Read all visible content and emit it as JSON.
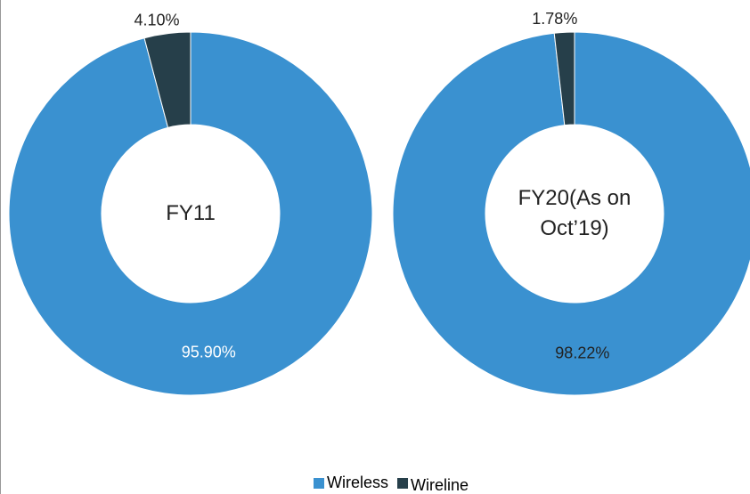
{
  "chart_data": [
    {
      "type": "pie",
      "center_label": "FY11",
      "values": [
        95.9,
        4.1
      ],
      "value_labels": [
        "95.90%",
        "4.10%"
      ],
      "inside_label_color": "#ffffff"
    },
    {
      "type": "pie",
      "center_label": "FY20(As on Oct’19)",
      "values": [
        98.22,
        1.78
      ],
      "value_labels": [
        "98.22%",
        "1.78%"
      ],
      "inside_label_color": "#222222"
    }
  ],
  "legend": {
    "categories": [
      "Wireless",
      "Wireline"
    ],
    "colors": [
      "#3a91d0",
      "#263f4a"
    ]
  }
}
